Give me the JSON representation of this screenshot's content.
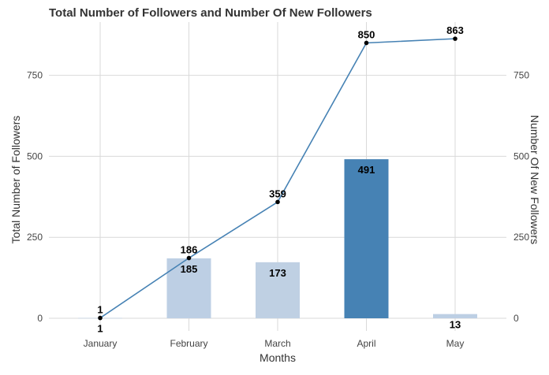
{
  "chart_data": {
    "type": "bar",
    "title": "Total Number of Followers and Number Of New Followers",
    "xlabel": "Months",
    "ylabel_left": "Total Number of Followers",
    "ylabel_right": "Number Of New Followers",
    "categories": [
      "January",
      "February",
      "March",
      "April",
      "May"
    ],
    "ylim": [
      0,
      900
    ],
    "yticks": [
      "0",
      "250",
      "500",
      "750"
    ],
    "grid": true,
    "legend": "none",
    "series": [
      {
        "type": "bar",
        "values": [
          1,
          185,
          173,
          491,
          13
        ],
        "labels": [
          "1",
          "185",
          "173",
          "491",
          "13"
        ],
        "colors": [
          "#bdcfe4",
          "#bdcfe4",
          "#bfd0e3",
          "#4682b4",
          "#bdcfe4"
        ]
      },
      {
        "type": "line",
        "values": [
          1,
          186,
          359,
          850,
          863
        ],
        "labels": [
          "1",
          "186",
          "359",
          "850",
          "863"
        ],
        "color": "#4682b4"
      }
    ]
  }
}
